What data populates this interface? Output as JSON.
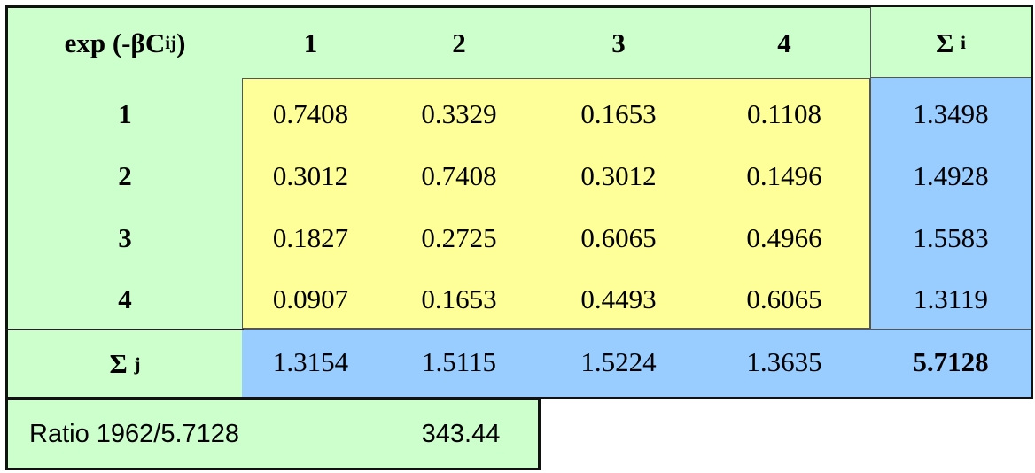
{
  "table": {
    "corner_prefix": "exp (-",
    "corner_beta": "β",
    "corner_c": "C",
    "corner_sub": "ij",
    "corner_suffix": ")",
    "sum_symbol": "Σ",
    "sum_i_sub": "i",
    "sum_j_sub": "j",
    "col_headers": [
      "1",
      "2",
      "3",
      "4"
    ],
    "rows": [
      {
        "label": "1",
        "values": [
          "0.7408",
          "0.3329",
          "0.1653",
          "0.1108"
        ],
        "sum": "1.3498"
      },
      {
        "label": "2",
        "values": [
          "0.3012",
          "0.7408",
          "0.3012",
          "0.1496"
        ],
        "sum": "1.4928"
      },
      {
        "label": "3",
        "values": [
          "0.1827",
          "0.2725",
          "0.6065",
          "0.4966"
        ],
        "sum": "1.5583"
      },
      {
        "label": "4",
        "values": [
          "0.0907",
          "0.1653",
          "0.4493",
          "0.6065"
        ],
        "sum": "1.3119"
      }
    ],
    "col_sums": [
      "1.3154",
      "1.5115",
      "1.5224",
      "1.3635"
    ],
    "grand_total": "5.7128",
    "ratio_label": "Ratio 1962/5.7128",
    "ratio_value": "343.44"
  }
}
